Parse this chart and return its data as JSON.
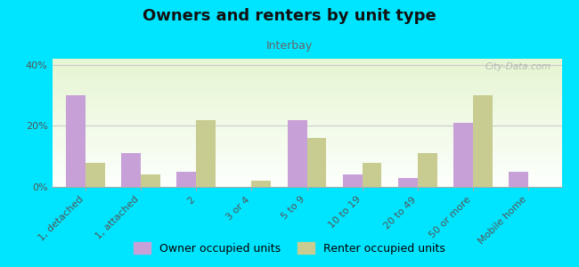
{
  "title": "Owners and renters by unit type",
  "subtitle": "Interbay",
  "categories": [
    "1, detached",
    "1, attached",
    "2",
    "3 or 4",
    "5 to 9",
    "10 to 19",
    "20 to 49",
    "50 or more",
    "Mobile home"
  ],
  "owner_values": [
    30,
    11,
    5,
    0,
    22,
    4,
    3,
    21,
    5
  ],
  "renter_values": [
    8,
    4,
    22,
    2,
    16,
    8,
    11,
    30,
    0
  ],
  "owner_color": "#c8a0d8",
  "renter_color": "#c8cc90",
  "ylim": [
    0,
    42
  ],
  "yticks": [
    0,
    20,
    40
  ],
  "ytick_labels": [
    "0%",
    "20%",
    "40%"
  ],
  "bar_width": 0.35,
  "fig_bg_color": "#00e5ff",
  "legend_owner": "Owner occupied units",
  "legend_renter": "Renter occupied units",
  "watermark": "City-Data.com"
}
